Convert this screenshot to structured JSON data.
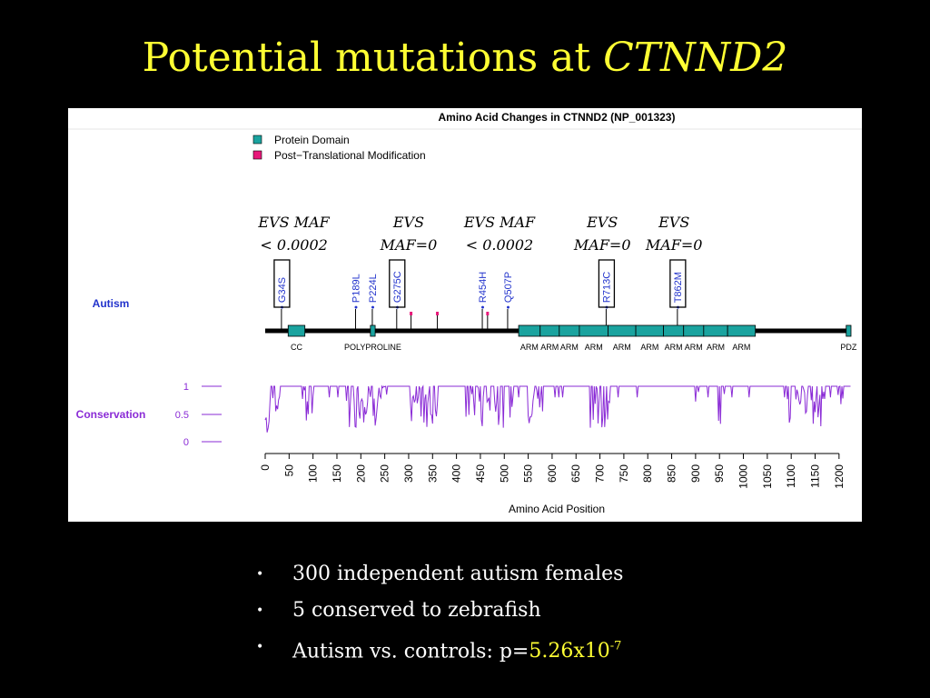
{
  "slide": {
    "title_prefix": "Potential mutations at ",
    "title_gene": "CTNND2",
    "bullets": [
      {
        "text": "300 independent autism females"
      },
      {
        "text": "5 conserved to zebrafish"
      },
      {
        "text_prefix": "Autism vs. controls: p=",
        "value": "5.26x10",
        "exponent": "-7"
      }
    ]
  },
  "colors": {
    "domain": "#1aa39f",
    "ptm": "#e8197a",
    "variant_text": "#2233cc",
    "autism_label": "#2233cc",
    "conservation": "#8a2bd6",
    "annotation": "#000000"
  },
  "chart_data": {
    "type": "lollipop",
    "title": "Amino Acid Changes in CTNND2 (NP_001323)",
    "xlabel": "Amino Acid Position",
    "xlim": [
      0,
      1225
    ],
    "xticks": [
      0,
      50,
      100,
      150,
      200,
      250,
      300,
      350,
      400,
      450,
      500,
      550,
      600,
      650,
      700,
      750,
      800,
      850,
      900,
      950,
      1000,
      1050,
      1100,
      1150,
      1200
    ],
    "legend": [
      {
        "label": "Protein Domain",
        "color": "#1aa39f"
      },
      {
        "label": "Post−Translational Modification",
        "color": "#e8197a"
      }
    ],
    "track_label": "Autism",
    "domains": [
      {
        "name": "CC",
        "start": 48,
        "end": 83
      },
      {
        "name": "POLYPROLINE",
        "start": 220,
        "end": 230
      },
      {
        "name": "ARM",
        "start": 530,
        "end": 575
      },
      {
        "name": "ARM",
        "start": 575,
        "end": 615
      },
      {
        "name": "ARM",
        "start": 615,
        "end": 657
      },
      {
        "name": "ARM",
        "start": 657,
        "end": 717
      },
      {
        "name": "ARM",
        "start": 717,
        "end": 775
      },
      {
        "name": "ARM",
        "start": 775,
        "end": 833
      },
      {
        "name": "ARM",
        "start": 833,
        "end": 875
      },
      {
        "name": "ARM",
        "start": 875,
        "end": 917
      },
      {
        "name": "ARM",
        "start": 917,
        "end": 967
      },
      {
        "name": "ARM",
        "start": 967,
        "end": 1025
      },
      {
        "name": "PDZ",
        "start": 1215,
        "end": 1225
      }
    ],
    "ptm_sites": [
      305,
      360,
      465
    ],
    "variants": [
      {
        "label": "G34S",
        "position": 34
      },
      {
        "label": "P189L",
        "position": 189
      },
      {
        "label": "P224L",
        "position": 224
      },
      {
        "label": "G275C",
        "position": 275
      },
      {
        "label": "R454H",
        "position": 454
      },
      {
        "label": "Q507P",
        "position": 507
      },
      {
        "label": "R713C",
        "position": 713
      },
      {
        "label": "T862M",
        "position": 862
      }
    ],
    "annotations": [
      {
        "line1": "EVS MAF",
        "line2": "< 0.0002",
        "position": 60
      },
      {
        "line1": "EVS",
        "line2": "MAF=0",
        "position": 300
      },
      {
        "line1": "EVS MAF",
        "line2": "< 0.0002",
        "position": 490
      },
      {
        "line1": "EVS",
        "line2": "MAF=0",
        "position": 705
      },
      {
        "line1": "EVS",
        "line2": "MAF=0",
        "position": 855
      }
    ],
    "boxed_variants": [
      "G34S",
      "G275C",
      "R713C",
      "T862M"
    ],
    "conservation": {
      "label": "Conservation",
      "yticks": [
        "1",
        "0.5",
        "0"
      ],
      "ylim": [
        0,
        1
      ]
    }
  }
}
